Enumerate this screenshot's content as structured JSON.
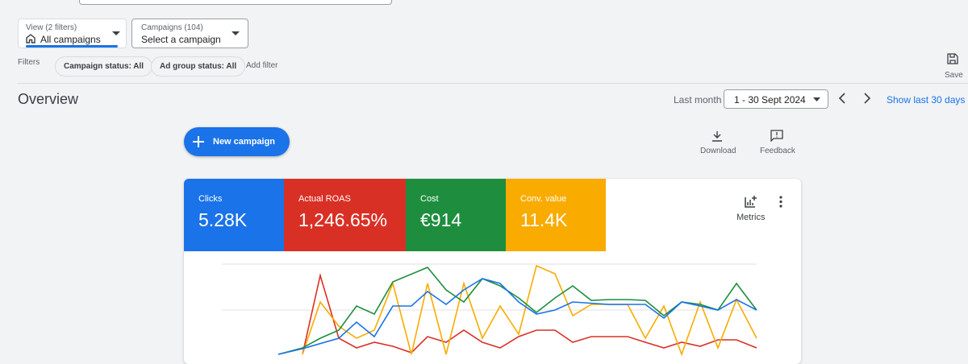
{
  "filters_bar": {
    "view_dropdown": {
      "caption": "View (2 filters)",
      "value": "All campaigns"
    },
    "campaign_dropdown": {
      "caption": "Campaigns (104)",
      "value": "Select a campaign"
    },
    "filters_label": "Filters",
    "chips": [
      "Campaign status: All",
      "Ad group status: All"
    ],
    "add_filter": "Add filter",
    "save": "Save"
  },
  "overview": {
    "title": "Overview",
    "period_label": "Last month",
    "date_range": "1 - 30 Sept 2024",
    "show_last": "Show last 30 days",
    "new_campaign": "New campaign",
    "download": "Download",
    "feedback": "Feedback",
    "metrics": "Metrics",
    "tiles": [
      {
        "label": "Clicks",
        "value": "5.28K"
      },
      {
        "label": "Actual ROAS",
        "value": "1,246.65%"
      },
      {
        "label": "Cost",
        "value": "€914"
      },
      {
        "label": "Conv. value",
        "value": "11.4K"
      }
    ]
  }
}
